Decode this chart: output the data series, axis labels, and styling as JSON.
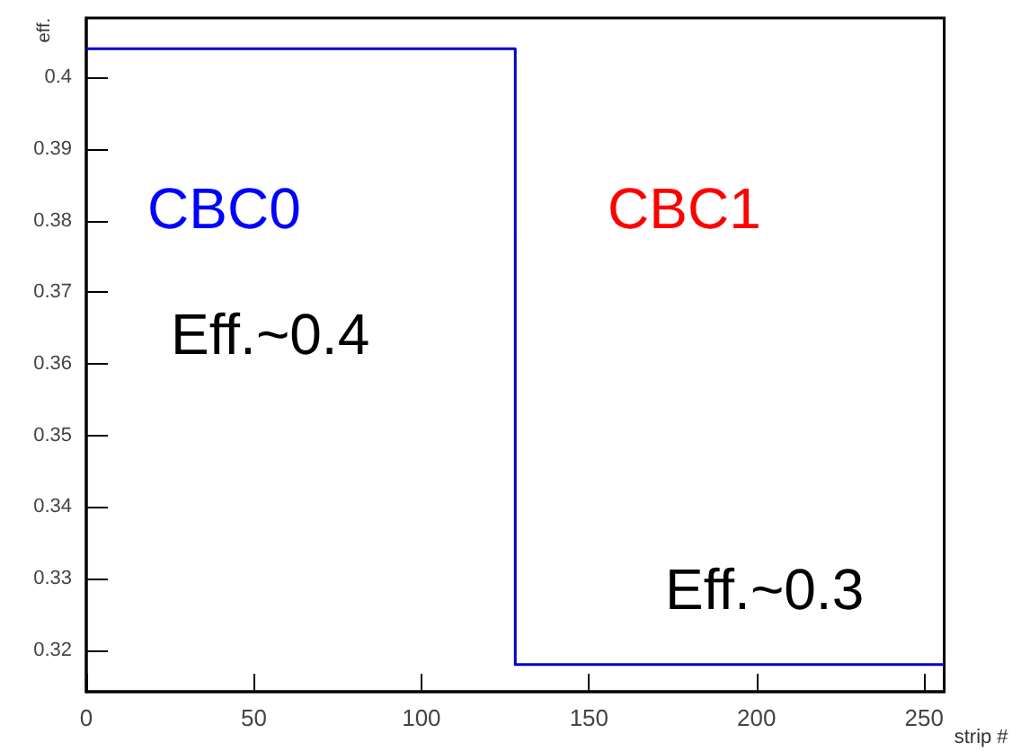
{
  "chart_data": {
    "type": "step",
    "xlabel": "strip #",
    "ylabel": "eff.",
    "x": [
      0,
      128,
      256
    ],
    "series": [
      {
        "color": "#0000cc",
        "values": [
          0.404,
          0.318,
          0.318
        ]
      }
    ],
    "xlim": [
      0,
      256
    ],
    "xticks": [
      0,
      50,
      100,
      150,
      200,
      250
    ],
    "ylim": [
      0.3142,
      0.4083
    ],
    "yticks": [
      0.32,
      0.33,
      0.34,
      0.35,
      0.36,
      0.37,
      0.38,
      0.39,
      0.4
    ],
    "annotations": [
      "CBC0",
      "CBC1",
      "Eff.~0.4",
      "Eff.~0.3"
    ],
    "grid": false
  }
}
